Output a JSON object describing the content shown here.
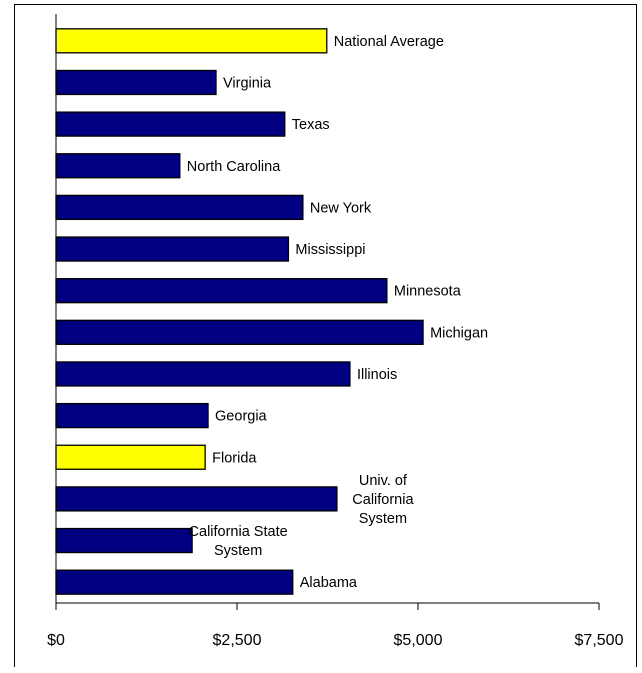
{
  "chart_data": {
    "type": "bar",
    "orientation": "horizontal",
    "categories": [
      "National Average",
      "Virginia",
      "Texas",
      "North Carolina",
      "New York",
      "Mississippi",
      "Minnesota",
      "Michigan",
      "Illinois",
      "Georgia",
      "Florida",
      "Univ. of California System",
      "California State System",
      "Alabama"
    ],
    "values": [
      3740,
      2210,
      3160,
      1710,
      3410,
      3210,
      4570,
      5070,
      4060,
      2100,
      2060,
      3880,
      1880,
      3270
    ],
    "highlight": [
      "National Average",
      "Florida"
    ],
    "xlim": [
      0,
      7500
    ],
    "xticks": [
      0,
      2500,
      5000,
      7500
    ],
    "xtick_labels": [
      "$0",
      "$2,500",
      "$5,000",
      "$7,500"
    ],
    "title": "",
    "xlabel": "",
    "ylabel": "",
    "grid": false,
    "legend": "none",
    "colors": {
      "bar": "#000080",
      "highlight": "#ffff00",
      "stroke": "#000000"
    }
  }
}
